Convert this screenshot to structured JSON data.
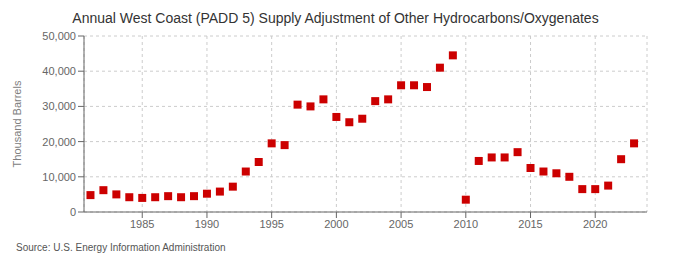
{
  "chart_data": {
    "type": "scatter",
    "title": "Annual West Coast (PADD 5) Supply Adjustment of Other Hydrocarbons/Oxygenates",
    "ylabel": "Thousand Barrels",
    "annotation": "Source: U.S. Energy Information Administration",
    "x": [
      1981,
      1982,
      1983,
      1984,
      1985,
      1986,
      1987,
      1988,
      1989,
      1990,
      1991,
      1992,
      1993,
      1994,
      1995,
      1996,
      1997,
      1998,
      1999,
      2000,
      2001,
      2002,
      2003,
      2004,
      2005,
      2006,
      2007,
      2008,
      2009,
      2010,
      2011,
      2012,
      2013,
      2014,
      2015,
      2016,
      2017,
      2018,
      2019,
      2020,
      2021,
      2022,
      2023
    ],
    "values": [
      4800,
      6200,
      5000,
      4200,
      4000,
      4200,
      4500,
      4200,
      4500,
      5200,
      5800,
      7200,
      11500,
      14200,
      19500,
      19000,
      30500,
      30000,
      32000,
      27000,
      25500,
      26500,
      31500,
      32000,
      36000,
      36000,
      35500,
      41000,
      44500,
      3500,
      14500,
      15500,
      15500,
      17000,
      12500,
      11500,
      11000,
      10000,
      6500,
      6500,
      7500,
      15000,
      19500
    ],
    "color": "#cc0000",
    "marker": "square",
    "xlim": [
      1980.5,
      2024
    ],
    "xticks": [
      1985,
      1990,
      1995,
      2000,
      2005,
      2010,
      2015,
      2020
    ],
    "ylim": [
      0,
      50000
    ],
    "yticks": [
      0,
      {
        "value": 10000,
        "label": "10,000"
      },
      {
        "value": 20000,
        "label": "20,000"
      },
      {
        "value": 30000,
        "label": "30,000"
      },
      {
        "value": 40000,
        "label": "40,000"
      },
      {
        "value": 50000,
        "label": "50,000"
      }
    ],
    "grid": true
  }
}
